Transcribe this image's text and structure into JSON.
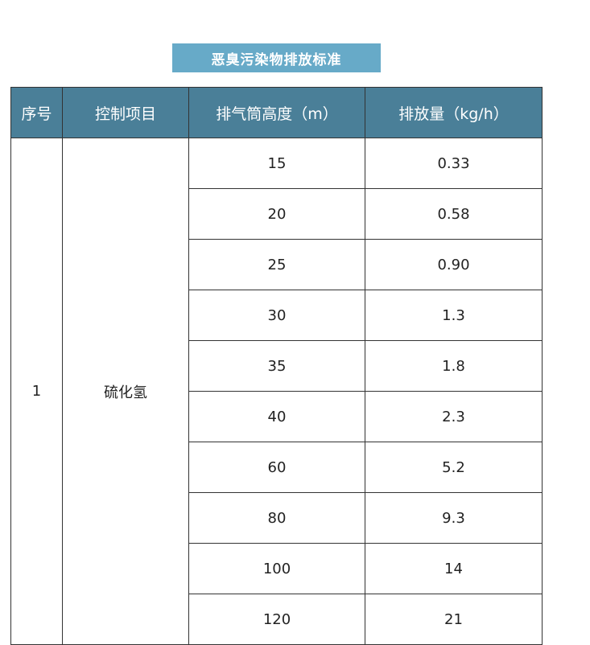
{
  "title": "恶臭污染物排放标准",
  "table": {
    "headers": [
      "序号",
      "控制项目",
      "排气筒高度（m）",
      "排放量（kg/h）"
    ],
    "index": "1",
    "item": "硫化氢",
    "rows": [
      {
        "height": "15",
        "rate": "0.33"
      },
      {
        "height": "20",
        "rate": "0.58"
      },
      {
        "height": "25",
        "rate": "0.90"
      },
      {
        "height": "30",
        "rate": "1.3"
      },
      {
        "height": "35",
        "rate": "1.8"
      },
      {
        "height": "40",
        "rate": "2.3"
      },
      {
        "height": "60",
        "rate": "5.2"
      },
      {
        "height": "80",
        "rate": "9.3"
      },
      {
        "height": "100",
        "rate": "14"
      },
      {
        "height": "120",
        "rate": "21"
      }
    ]
  }
}
